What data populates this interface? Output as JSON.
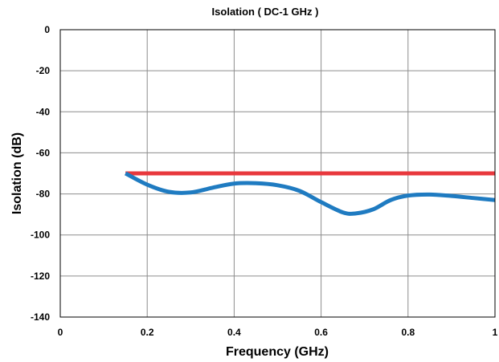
{
  "chart_data": {
    "type": "line",
    "title": "Isolation ( DC-1 GHz )",
    "xlabel": "Frequency (GHz)",
    "ylabel": "Isolation (dB)",
    "xlim": [
      0,
      1
    ],
    "ylim": [
      -140,
      0
    ],
    "x_ticks": [
      0,
      0.2,
      0.4,
      0.6,
      0.8,
      1
    ],
    "x_tick_labels": [
      "0",
      "0.2",
      "0.4",
      "0.6",
      "0.8",
      "1"
    ],
    "y_ticks": [
      0,
      -20,
      -40,
      -60,
      -80,
      -100,
      -120,
      -140
    ],
    "y_tick_labels": [
      "0",
      "-20",
      "-40",
      "-60",
      "-80",
      "-100",
      "-120",
      "-140"
    ],
    "grid": true,
    "series": [
      {
        "color": "#e8383d",
        "x": [
          0.15,
          1.0
        ],
        "y": [
          -70,
          -70
        ]
      },
      {
        "color": "#1f7bc1",
        "x": [
          0.15,
          0.2,
          0.25,
          0.3,
          0.35,
          0.4,
          0.45,
          0.5,
          0.55,
          0.6,
          0.65,
          0.68,
          0.72,
          0.76,
          0.8,
          0.85,
          0.9,
          0.95,
          1.0
        ],
        "y": [
          -70,
          -75.5,
          -79,
          -79.3,
          -77,
          -75,
          -74.8,
          -75.8,
          -78.5,
          -84,
          -89,
          -89.5,
          -87.5,
          -83,
          -80.8,
          -80.3,
          -81,
          -82,
          -83
        ]
      }
    ]
  }
}
